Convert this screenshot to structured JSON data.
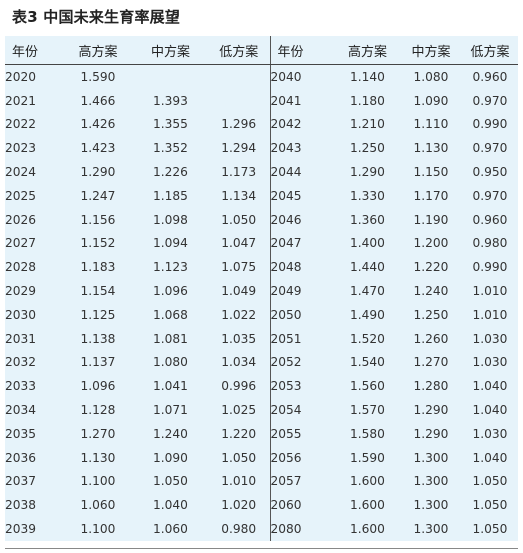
{
  "title": "表3 中国未来生育率展望",
  "headers": [
    "年份",
    "高方案",
    "中方案",
    "低方案",
    "年份",
    "高方案",
    "中方案",
    "低方案"
  ],
  "rows": [
    [
      "2020",
      "1.590",
      "",
      "",
      "2040",
      "1.140",
      "1.080",
      "0.960"
    ],
    [
      "2021",
      "1.466",
      "1.393",
      "",
      "2041",
      "1.180",
      "1.090",
      "0.970"
    ],
    [
      "2022",
      "1.426",
      "1.355",
      "1.296",
      "2042",
      "1.210",
      "1.110",
      "0.990"
    ],
    [
      "2023",
      "1.423",
      "1.352",
      "1.294",
      "2043",
      "1.250",
      "1.130",
      "0.970"
    ],
    [
      "2024",
      "1.290",
      "1.226",
      "1.173",
      "2044",
      "1.290",
      "1.150",
      "0.950"
    ],
    [
      "2025",
      "1.247",
      "1.185",
      "1.134",
      "2045",
      "1.330",
      "1.170",
      "0.970"
    ],
    [
      "2026",
      "1.156",
      "1.098",
      "1.050",
      "2046",
      "1.360",
      "1.190",
      "0.960"
    ],
    [
      "2027",
      "1.152",
      "1.094",
      "1.047",
      "2047",
      "1.400",
      "1.200",
      "0.980"
    ],
    [
      "2028",
      "1.183",
      "1.123",
      "1.075",
      "2048",
      "1.440",
      "1.220",
      "0.990"
    ],
    [
      "2029",
      "1.154",
      "1.096",
      "1.049",
      "2049",
      "1.470",
      "1.240",
      "1.010"
    ],
    [
      "2030",
      "1.125",
      "1.068",
      "1.022",
      "2050",
      "1.490",
      "1.250",
      "1.010"
    ],
    [
      "2031",
      "1.138",
      "1.081",
      "1.035",
      "2051",
      "1.520",
      "1.260",
      "1.030"
    ],
    [
      "2032",
      "1.137",
      "1.080",
      "1.034",
      "2052",
      "1.540",
      "1.270",
      "1.030"
    ],
    [
      "2033",
      "1.096",
      "1.041",
      "0.996",
      "2053",
      "1.560",
      "1.280",
      "1.040"
    ],
    [
      "2034",
      "1.128",
      "1.071",
      "1.025",
      "2054",
      "1.570",
      "1.290",
      "1.040"
    ],
    [
      "2035",
      "1.270",
      "1.240",
      "1.220",
      "2055",
      "1.580",
      "1.290",
      "1.030"
    ],
    [
      "2036",
      "1.130",
      "1.090",
      "1.050",
      "2056",
      "1.590",
      "1.300",
      "1.040"
    ],
    [
      "2037",
      "1.100",
      "1.050",
      "1.010",
      "2057",
      "1.600",
      "1.300",
      "1.050"
    ],
    [
      "2038",
      "1.060",
      "1.040",
      "1.020",
      "2060",
      "1.600",
      "1.300",
      "1.050"
    ],
    [
      "2039",
      "1.100",
      "1.060",
      "0.980",
      "2080",
      "1.600",
      "1.300",
      "1.050"
    ]
  ]
}
